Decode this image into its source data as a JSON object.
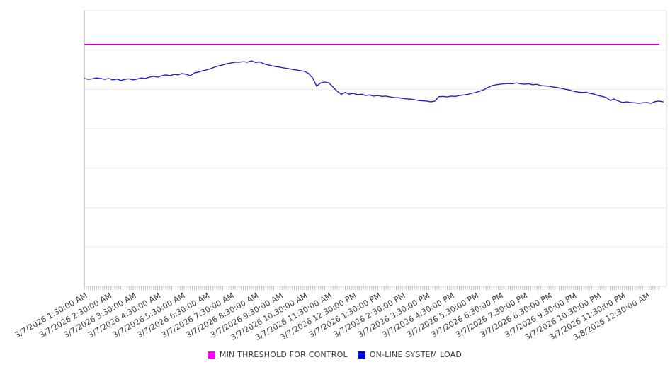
{
  "chart_data": {
    "type": "line",
    "title": "",
    "background": "#ffffff",
    "x_axis": {
      "labels": [
        "3/7/2026 1:30:00 AM",
        "3/7/2026 2:30:00 AM",
        "3/7/2026 3:30:00 AM",
        "3/7/2026 4:30:00 AM",
        "3/7/2026 5:30:00 AM",
        "3/7/2026 6:30:00 AM",
        "3/7/2026 7:30:00 AM",
        "3/7/2026 8:30:00 AM",
        "3/7/2026 9:30:00 AM",
        "3/7/2026 10:30:00 AM",
        "3/7/2026 11:30:00 AM",
        "3/7/2026 12:30:00 PM",
        "3/7/2026 1:30:00 PM",
        "3/7/2026 2:30:00 PM",
        "3/7/2026 3:30:00 PM",
        "3/7/2026 4:30:00 PM",
        "3/7/2026 5:30:00 PM",
        "3/7/2026 6:30:00 PM",
        "3/7/2026 7:30:00 PM",
        "3/7/2026 8:30:00 PM",
        "3/7/2026 9:30:00 PM",
        "3/7/2026 10:30:00 PM",
        "3/7/2026 11:30:00 PM",
        "3/8/2026 12:30:00 AM"
      ],
      "label_rotation_deg": -30,
      "label_color": "#404040",
      "label_font_px": 11,
      "minor_tick_interval_minutes": 5,
      "minor_tick_end_minute": 1410,
      "tick_color": "#b3b3b3"
    },
    "y_axis": {
      "tick_labels_visible": false,
      "unit": "percent_of_plot_height_estimated",
      "range": [
        0,
        100
      ],
      "gridline_values": [
        0,
        14.3,
        28.6,
        42.9,
        57.1,
        71.4,
        85.7,
        100
      ],
      "gridline_color": "#ebebeb",
      "left_axis_color": "#a8a8a8",
      "border_color": "#dedede"
    },
    "legend": {
      "position": "bottom-center"
    },
    "series": [
      {
        "name": "MIN THRESHOLD FOR CONTROL",
        "type": "threshold",
        "color": "#cc00cc",
        "legend_color": "#ff00ff",
        "value": 87.7,
        "start_minute": 0,
        "end_minute": 1410
      },
      {
        "name": "ON-LINE SYSTEM LOAD",
        "type": "line",
        "color": "#2222bb",
        "legend_color": "#0000ee",
        "start_label": "3/7/2026 1:30:00 AM",
        "interval_minutes": 10,
        "values": [
          75.4,
          75.1,
          75.3,
          75.6,
          75.4,
          75.1,
          75.4,
          74.9,
          75.2,
          74.7,
          75.1,
          75.3,
          74.9,
          75.2,
          75.6,
          75.4,
          75.9,
          76.2,
          75.9,
          76.4,
          76.7,
          76.4,
          76.9,
          76.7,
          77.2,
          76.9,
          76.4,
          77.4,
          77.7,
          78.2,
          78.5,
          79.0,
          79.5,
          80.0,
          80.3,
          80.8,
          81.0,
          81.3,
          81.3,
          81.5,
          81.3,
          81.8,
          81.2,
          81.4,
          80.8,
          80.3,
          80.0,
          79.7,
          79.5,
          79.2,
          79.0,
          78.7,
          78.5,
          78.2,
          78.0,
          77.2,
          75.6,
          72.6,
          73.8,
          74.1,
          73.8,
          72.3,
          70.8,
          69.7,
          70.3,
          69.7,
          70.0,
          69.5,
          69.7,
          69.2,
          69.4,
          69.0,
          69.2,
          68.9,
          69.0,
          68.7,
          68.5,
          68.4,
          68.2,
          68.0,
          67.9,
          67.7,
          67.4,
          67.3,
          67.2,
          66.9,
          67.2,
          68.8,
          68.9,
          68.7,
          69.0,
          68.9,
          69.2,
          69.4,
          69.6,
          70.0,
          70.3,
          70.8,
          71.3,
          72.1,
          72.8,
          73.1,
          73.3,
          73.5,
          73.6,
          73.5,
          73.8,
          73.5,
          73.3,
          73.5,
          73.1,
          73.3,
          72.8,
          72.7,
          72.6,
          72.3,
          72.1,
          71.8,
          71.5,
          71.2,
          70.8,
          70.5,
          70.3,
          70.4,
          70.0,
          69.7,
          69.2,
          68.9,
          68.5,
          67.4,
          67.9,
          67.2,
          66.7,
          66.9,
          66.7,
          66.6,
          66.4,
          66.6,
          66.7,
          66.4,
          67.0,
          67.2,
          66.9
        ]
      }
    ]
  }
}
